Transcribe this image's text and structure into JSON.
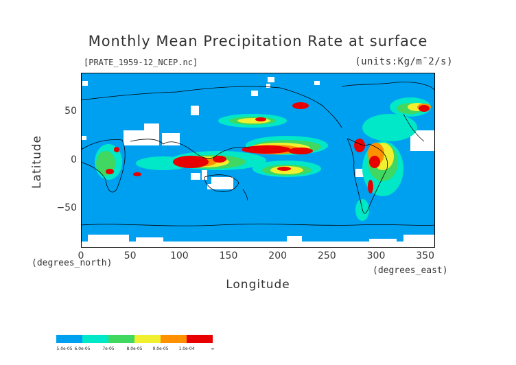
{
  "header": {
    "title": "Monthly Mean Precipitation Rate at surface",
    "file_label": "[PRATE_1959-12_NCEP.nc]",
    "units_label": "(units:Kg/m¯2/s)"
  },
  "axes": {
    "x_label": "Longitude",
    "y_label": "Latitude",
    "x_units": "(degrees_east)",
    "y_units": "(degrees_north)",
    "x_ticks": [
      "0",
      "50",
      "100",
      "150",
      "200",
      "250",
      "300",
      "350"
    ],
    "x_tick_values": [
      0,
      50,
      100,
      150,
      200,
      250,
      300,
      350
    ],
    "y_ticks": [
      "50",
      "0",
      "−50"
    ],
    "y_tick_values": [
      50,
      0,
      -50
    ],
    "x_range": [
      0,
      360
    ],
    "y_range": [
      -90,
      90
    ]
  },
  "colors": {
    "background_field": "#00a0f0",
    "missing": "#ffffff",
    "coast": "#000000",
    "levels": [
      "#00a0f0",
      "#00e8c8",
      "#40d860",
      "#f0f030",
      "#ff9000",
      "#e80000"
    ]
  },
  "legend": {
    "labels": [
      "5.0e-05",
      "6.0e-05",
      "7e-05",
      "8.0e-05",
      "9.0e-05",
      "1.0e-04",
      "∞"
    ]
  }
}
